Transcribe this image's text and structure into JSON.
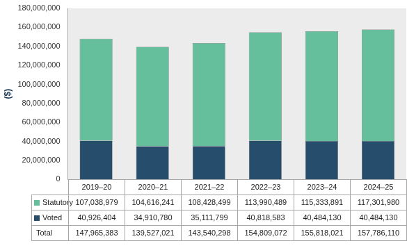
{
  "chart_data": {
    "type": "bar",
    "y_label": "($)",
    "categories": [
      "2019–20",
      "2020–21",
      "2021–22",
      "2022–23",
      "2023–24",
      "2024–25"
    ],
    "series": [
      {
        "name": "Statutory",
        "color": "#66bf9c",
        "values": [
          107038979,
          104616241,
          108428499,
          113990489,
          115333891,
          117301980
        ],
        "value_labels": [
          "107,038,979",
          "104,616,241",
          "108,428,499",
          "113,990,489",
          "115,333,891",
          "117,301,980"
        ]
      },
      {
        "name": "Voted",
        "color": "#264d6b",
        "values": [
          40926404,
          34910780,
          35111799,
          40818583,
          40484130,
          40484130
        ],
        "value_labels": [
          "40,926,404",
          "34,910,780",
          "35,111,799",
          "40,818,583",
          "40,484,130",
          "40,484,130"
        ]
      }
    ],
    "total": {
      "name": "Total",
      "values": [
        147965383,
        139527021,
        143540298,
        154809072,
        155818021,
        157786110
      ],
      "value_labels": [
        "147,965,383",
        "139,527,021",
        "143,540,298",
        "154,809,072",
        "155,818,021",
        "157,786,110"
      ]
    },
    "stacked": true,
    "grid": false,
    "tick_labels": "y",
    "ylim": [
      0,
      180000000
    ],
    "yticks": [
      0,
      {
        "value": 20000000,
        "label": "20,000,000"
      },
      {
        "value": 40000000,
        "label": "40,000,000"
      },
      {
        "value": 60000000,
        "label": "60,000,000"
      },
      {
        "value": 80000000,
        "label": "80,000,000"
      },
      {
        "value": 100000000,
        "label": "100,000,000"
      },
      {
        "value": 120000000,
        "label": "120,000,000"
      },
      {
        "value": 140000000,
        "label": "140,000,000"
      },
      {
        "value": 160000000,
        "label": "160,000,000"
      },
      {
        "value": 180000000,
        "label": "180,000,000"
      }
    ]
  }
}
